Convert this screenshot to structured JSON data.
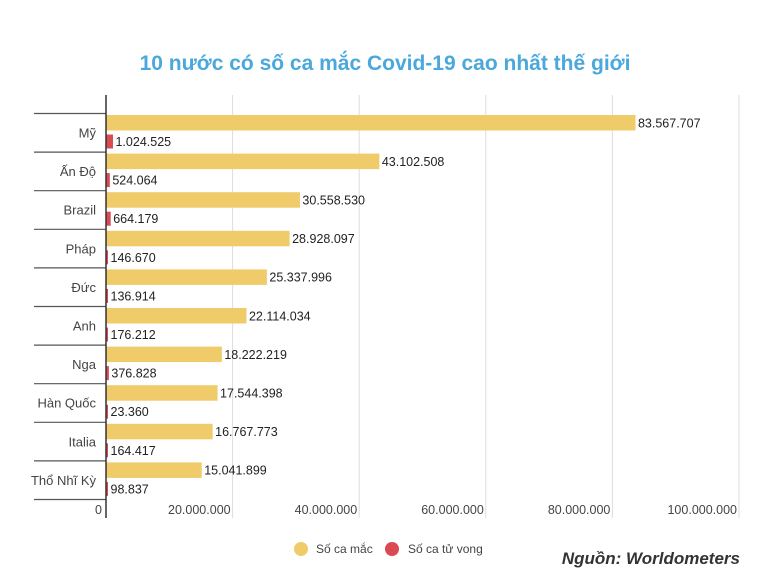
{
  "chart_data": {
    "type": "bar",
    "orientation": "horizontal",
    "title": "10 nước có số ca mắc Covid-19 cao nhất thế giới",
    "categories": [
      "Mỹ",
      "Ấn Độ",
      "Brazil",
      "Pháp",
      "Đức",
      "Anh",
      "Nga",
      "Hàn Quốc",
      "Italia",
      "Thổ Nhĩ Kỳ"
    ],
    "series": [
      {
        "name": "Số ca mắc",
        "color": "#f0cb6a",
        "values": [
          83567707,
          43102508,
          30558530,
          28928097,
          25337996,
          22114034,
          18222219,
          17544398,
          16767773,
          15041899
        ],
        "labels": [
          "83.567.707",
          "43.102.508",
          "30.558.530",
          "28.928.097",
          "25.337.996",
          "22.114.034",
          "18.222.219",
          "17.544.398",
          "16.767.773",
          "15.041.899"
        ]
      },
      {
        "name": "Số ca tử vong",
        "color": "#d94a52",
        "values": [
          1024525,
          524064,
          664179,
          146670,
          136914,
          176212,
          376828,
          23360,
          164417,
          98837
        ],
        "labels": [
          "1.024.525",
          "524.064",
          "664.179",
          "146.670",
          "136.914",
          "176.212",
          "376.828",
          "23.360",
          "164.417",
          "98.837"
        ]
      }
    ],
    "xlim": [
      0,
      100000000
    ],
    "xticks": [
      0,
      20000000,
      40000000,
      60000000,
      80000000,
      100000000
    ],
    "xtick_labels": [
      "0",
      "20.000.000",
      "40.000.000",
      "60.000.000",
      "80.000.000",
      "100.000.000"
    ],
    "grid": true,
    "legend_position": "bottom",
    "title_color": "#4aa8dc"
  },
  "source": "Nguồn: Worldometers"
}
